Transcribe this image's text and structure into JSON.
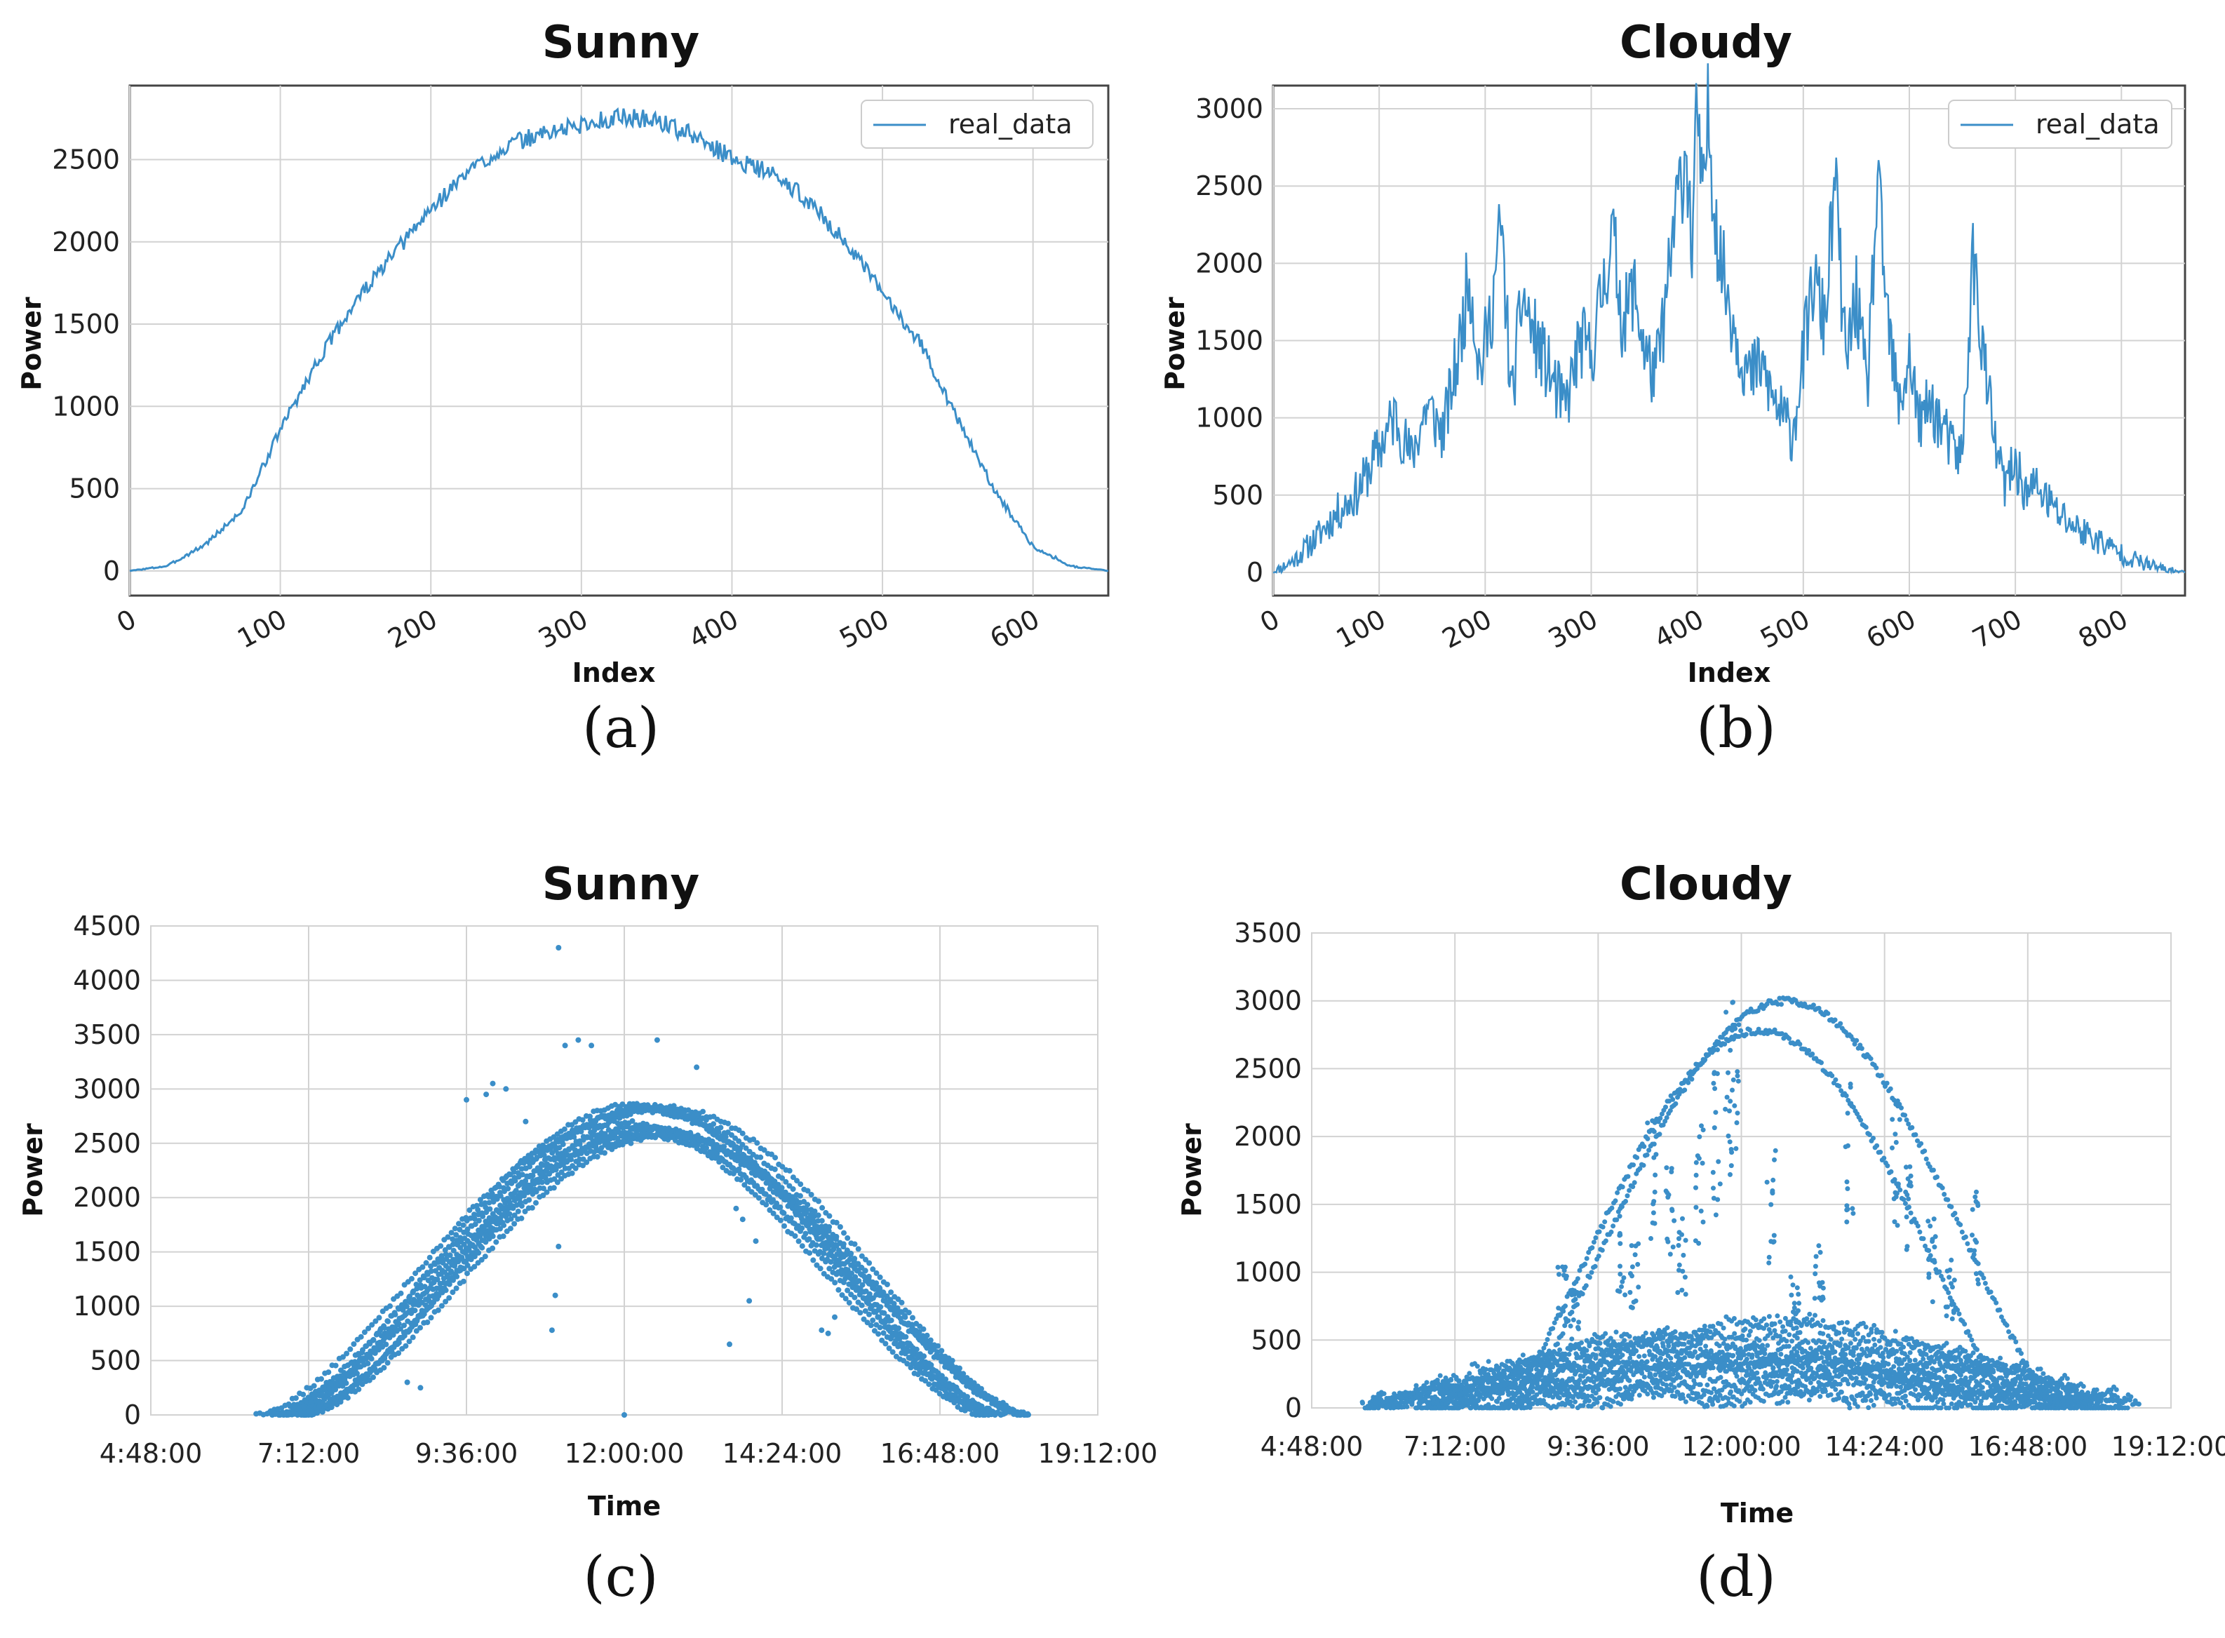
{
  "colors": {
    "series": "#3b8ec8",
    "grid": "#d2d2d2",
    "axis": "#444444"
  },
  "chart_data": [
    {
      "id": "a",
      "type": "line",
      "title": "Sunny",
      "xlabel": "Index",
      "ylabel": "Power",
      "caption": "(a)",
      "legend": {
        "label": "real_data",
        "placement": "top-right"
      },
      "xlim": [
        0,
        650
      ],
      "ylim": [
        -150,
        2950
      ],
      "xticks": [
        0,
        100,
        200,
        300,
        400,
        500,
        600
      ],
      "yticks": [
        0,
        500,
        1000,
        1500,
        2000,
        2500
      ],
      "grid": true,
      "series": [
        {
          "name": "real_data",
          "x": [
            0,
            25,
            50,
            75,
            100,
            125,
            150,
            175,
            200,
            225,
            250,
            275,
            300,
            325,
            350,
            375,
            400,
            425,
            450,
            475,
            500,
            525,
            550,
            575,
            600,
            625,
            650
          ],
          "values": [
            0,
            30,
            160,
            370,
            860,
            1280,
            1640,
            1920,
            2200,
            2430,
            2580,
            2660,
            2710,
            2760,
            2740,
            2640,
            2510,
            2420,
            2260,
            2000,
            1690,
            1390,
            920,
            480,
            150,
            30,
            0
          ]
        }
      ]
    },
    {
      "id": "b",
      "type": "line",
      "title": "Cloudy",
      "xlabel": "Index",
      "ylabel": "Power",
      "caption": "(b)",
      "legend": {
        "label": "real_data",
        "placement": "top-right"
      },
      "xlim": [
        0,
        860
      ],
      "ylim": [
        -150,
        3150
      ],
      "xticks": [
        0,
        100,
        200,
        300,
        400,
        500,
        600,
        700,
        800
      ],
      "yticks": [
        0,
        500,
        1000,
        1500,
        2000,
        2500,
        3000
      ],
      "grid": true,
      "series": [
        {
          "name": "real_data",
          "x": [
            0,
            20,
            40,
            60,
            80,
            100,
            115,
            130,
            145,
            160,
            175,
            185,
            195,
            205,
            215,
            225,
            235,
            245,
            260,
            275,
            290,
            300,
            310,
            320,
            330,
            340,
            350,
            360,
            370,
            380,
            390,
            395,
            400,
            405,
            410,
            420,
            430,
            440,
            450,
            460,
            470,
            480,
            490,
            500,
            510,
            520,
            530,
            540,
            550,
            560,
            570,
            580,
            590,
            600,
            610,
            620,
            630,
            640,
            650,
            660,
            670,
            680,
            690,
            700,
            710,
            720,
            740,
            760,
            780,
            800,
            820,
            840,
            860
          ],
          "values": [
            0,
            80,
            220,
            380,
            520,
            800,
            1020,
            740,
            1080,
            900,
            1420,
            1950,
            1300,
            1650,
            2250,
            1100,
            1800,
            1550,
            1300,
            1050,
            1500,
            1400,
            1800,
            2200,
            1600,
            1850,
            1450,
            1250,
            1700,
            2350,
            2750,
            2050,
            3050,
            2300,
            2950,
            2100,
            1750,
            1450,
            1250,
            1350,
            1150,
            1000,
            900,
            1400,
            1900,
            1600,
            2550,
            1350,
            1800,
            1150,
            2500,
            1600,
            1050,
            1400,
            950,
            1100,
            950,
            800,
            750,
            2050,
            1400,
            850,
            560,
            700,
            510,
            560,
            380,
            280,
            200,
            120,
            60,
            20,
            0
          ]
        }
      ]
    },
    {
      "id": "c",
      "type": "scatter",
      "title": "Sunny",
      "xlabel": "Time",
      "ylabel": "Power",
      "caption": "(c)",
      "xlim": [
        4.8,
        19.2
      ],
      "ylim": [
        0,
        4500
      ],
      "xticks": [
        "4:48:00",
        "7:12:00",
        "9:36:00",
        "12:00:00",
        "14:24:00",
        "16:48:00",
        "19:12:00"
      ],
      "yticks": [
        0,
        500,
        1000,
        1500,
        2000,
        2500,
        3000,
        3500,
        4000,
        4500
      ],
      "grid": true,
      "day_curves": {
        "count": 12,
        "start_hour": [
          6.4,
          7.2
        ],
        "end_hour": [
          17.4,
          18.2
        ],
        "peak_power": [
          2550,
          3000
        ]
      },
      "outliers": [
        [
          11.0,
          4300
        ],
        [
          10.2,
          3000
        ],
        [
          9.9,
          2950
        ],
        [
          11.1,
          3400
        ],
        [
          11.3,
          3450
        ],
        [
          11.5,
          3400
        ],
        [
          12.5,
          3450
        ],
        [
          10.0,
          3050
        ],
        [
          11.0,
          1550
        ],
        [
          10.9,
          780
        ],
        [
          10.95,
          1100
        ],
        [
          8.9,
          250
        ],
        [
          8.7,
          300
        ],
        [
          13.7,
          1900
        ],
        [
          13.8,
          1800
        ],
        [
          14.0,
          1600
        ],
        [
          13.6,
          650
        ],
        [
          13.9,
          1050
        ],
        [
          15.0,
          780
        ],
        [
          15.1,
          750
        ],
        [
          12.0,
          0
        ],
        [
          9.6,
          2900
        ],
        [
          13.1,
          3200
        ],
        [
          12.1,
          2500
        ],
        [
          15.2,
          900
        ],
        [
          10.5,
          2700
        ],
        [
          14.3,
          2100
        ]
      ]
    },
    {
      "id": "d",
      "type": "scatter",
      "title": "Cloudy",
      "xlabel": "Time",
      "ylabel": "Power",
      "caption": "(d)",
      "xlim": [
        4.8,
        19.2
      ],
      "ylim": [
        0,
        3500
      ],
      "xticks": [
        "4:48:00",
        "7:12:00",
        "9:36:00",
        "12:00:00",
        "14:24:00",
        "16:48:00",
        "19:12:00"
      ],
      "yticks": [
        0,
        500,
        1000,
        1500,
        2000,
        2500,
        3000,
        3500
      ],
      "grid": true,
      "clear_day_curves": [
        {
          "start_hour": 8.2,
          "end_hour": 17.3,
          "peak_power": 3000
        },
        {
          "start_hour": 8.0,
          "end_hour": 16.6,
          "peak_power": 2780
        }
      ],
      "noisy_days": {
        "count": 14,
        "start_hour": [
          5.6,
          7.0
        ],
        "end_hour": [
          17.5,
          19.0
        ],
        "level_range": [
          50,
          600
        ]
      },
      "spikes": [
        [
          10.5,
          2200
        ],
        [
          10.8,
          1900
        ],
        [
          11.0,
          1500
        ],
        [
          11.3,
          2100
        ],
        [
          11.6,
          2500
        ],
        [
          12.5,
          1900
        ],
        [
          13.3,
          1300
        ],
        [
          13.8,
          2400
        ],
        [
          14.8,
          1900
        ],
        [
          15.2,
          1400
        ],
        [
          10.2,
          1300
        ],
        [
          9.2,
          900
        ],
        [
          11.9,
          3150
        ],
        [
          11.8,
          3100
        ],
        [
          14.6,
          2300
        ],
        [
          15.9,
          1600
        ],
        [
          9.0,
          1050
        ],
        [
          12.9,
          1000
        ],
        [
          15.5,
          1100
        ],
        [
          10.0,
          1500
        ]
      ]
    }
  ]
}
